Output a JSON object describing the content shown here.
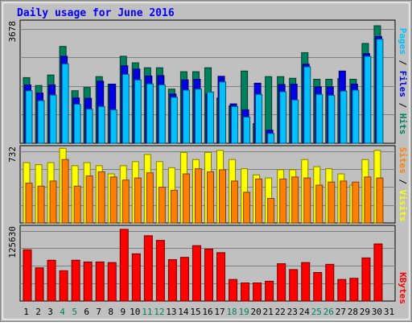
{
  "title": "Daily usage for June 2016",
  "colors": {
    "background": "#C0C0C0",
    "title": "#0000FF",
    "hits": "#00805C",
    "files": "#0000E6",
    "pages": "#00C0FF",
    "visits": "#FFFF00",
    "sites": "#FF8000",
    "kbytes": "#FF0000",
    "weekend_day_label": "#00805C",
    "weekday_label": "#000000",
    "grid": "#808080"
  },
  "legend": {
    "pages": "Pages",
    "files": "Files",
    "hits": "Hits",
    "sites": "Sites",
    "visits": "Visits",
    "kbytes": "KBytes",
    "separator": "/"
  },
  "chart_data": [
    {
      "type": "bar",
      "panel": "hits-files-pages",
      "ymax": 3678,
      "ytick_label": "3678",
      "categories": [
        "1",
        "2",
        "3",
        "4",
        "5",
        "6",
        "7",
        "8",
        "9",
        "10",
        "11",
        "12",
        "13",
        "14",
        "15",
        "16",
        "17",
        "18",
        "19",
        "20",
        "21",
        "22",
        "23",
        "24",
        "25",
        "26",
        "27",
        "28",
        "29",
        "30",
        "31"
      ],
      "weekend_categories": [
        "4",
        "5",
        "11",
        "12",
        "18",
        "19",
        "25",
        "26"
      ],
      "series": [
        {
          "name": "Hits",
          "values": [
            2000,
            1760,
            2080,
            2950,
            1600,
            1700,
            2030,
            1800,
            2650,
            2450,
            2300,
            2300,
            1650,
            2180,
            2180,
            2300,
            1380,
            1140,
            2200,
            600,
            2030,
            2030,
            1980,
            2760,
            1950,
            1950,
            1970,
            1950,
            3040,
            3580,
            0
          ]
        },
        {
          "name": "Files",
          "values": [
            1780,
            1530,
            1780,
            2650,
            1380,
            1370,
            1890,
            1800,
            2360,
            2260,
            2050,
            2060,
            1500,
            1930,
            1950,
            1500,
            2040,
            1200,
            1020,
            1830,
            400,
            1790,
            1800,
            2410,
            1720,
            1720,
            2200,
            1800,
            2730,
            3250,
            0
          ]
        },
        {
          "name": "Pages",
          "values": [
            1600,
            1300,
            1470,
            2420,
            1190,
            1040,
            1120,
            1020,
            2100,
            1930,
            1810,
            1780,
            1400,
            1620,
            1650,
            1560,
            1870,
            1120,
            800,
            1490,
            300,
            1570,
            1320,
            2330,
            1490,
            1460,
            1590,
            1620,
            2650,
            3170,
            0
          ]
        }
      ]
    },
    {
      "type": "bar",
      "panel": "visits-sites",
      "ymax": 732,
      "ytick_label": "732",
      "categories": [
        "1",
        "2",
        "3",
        "4",
        "5",
        "6",
        "7",
        "8",
        "9",
        "10",
        "11",
        "12",
        "13",
        "14",
        "15",
        "16",
        "17",
        "18",
        "19",
        "20",
        "21",
        "22",
        "23",
        "24",
        "25",
        "26",
        "27",
        "28",
        "29",
        "30",
        "31"
      ],
      "series": [
        {
          "name": "Visits",
          "values": [
            590,
            570,
            590,
            730,
            560,
            590,
            560,
            480,
            560,
            600,
            670,
            600,
            540,
            690,
            620,
            690,
            710,
            620,
            530,
            470,
            440,
            520,
            520,
            620,
            550,
            530,
            480,
            370,
            620,
            710,
            0
          ]
        },
        {
          "name": "Sites",
          "values": [
            390,
            360,
            410,
            620,
            360,
            460,
            500,
            450,
            420,
            440,
            490,
            350,
            320,
            480,
            530,
            500,
            520,
            410,
            300,
            430,
            240,
            430,
            450,
            440,
            370,
            400,
            410,
            400,
            450,
            440,
            0
          ]
        }
      ]
    },
    {
      "type": "bar",
      "panel": "kbytes",
      "ymax": 125630,
      "ytick_label": "125630",
      "categories": [
        "1",
        "2",
        "3",
        "4",
        "5",
        "6",
        "7",
        "8",
        "9",
        "10",
        "11",
        "12",
        "13",
        "14",
        "15",
        "16",
        "17",
        "18",
        "19",
        "20",
        "21",
        "22",
        "23",
        "24",
        "25",
        "26",
        "27",
        "28",
        "29",
        "30",
        "31"
      ],
      "series": [
        {
          "name": "KBytes",
          "values": [
            88000,
            57000,
            70000,
            52000,
            70000,
            67000,
            67000,
            66000,
            123000,
            81000,
            112000,
            104000,
            71000,
            75000,
            95000,
            89000,
            83000,
            37000,
            31000,
            31000,
            34000,
            64000,
            54000,
            66000,
            49000,
            63000,
            37000,
            39000,
            74000,
            98000,
            0
          ]
        }
      ]
    }
  ]
}
